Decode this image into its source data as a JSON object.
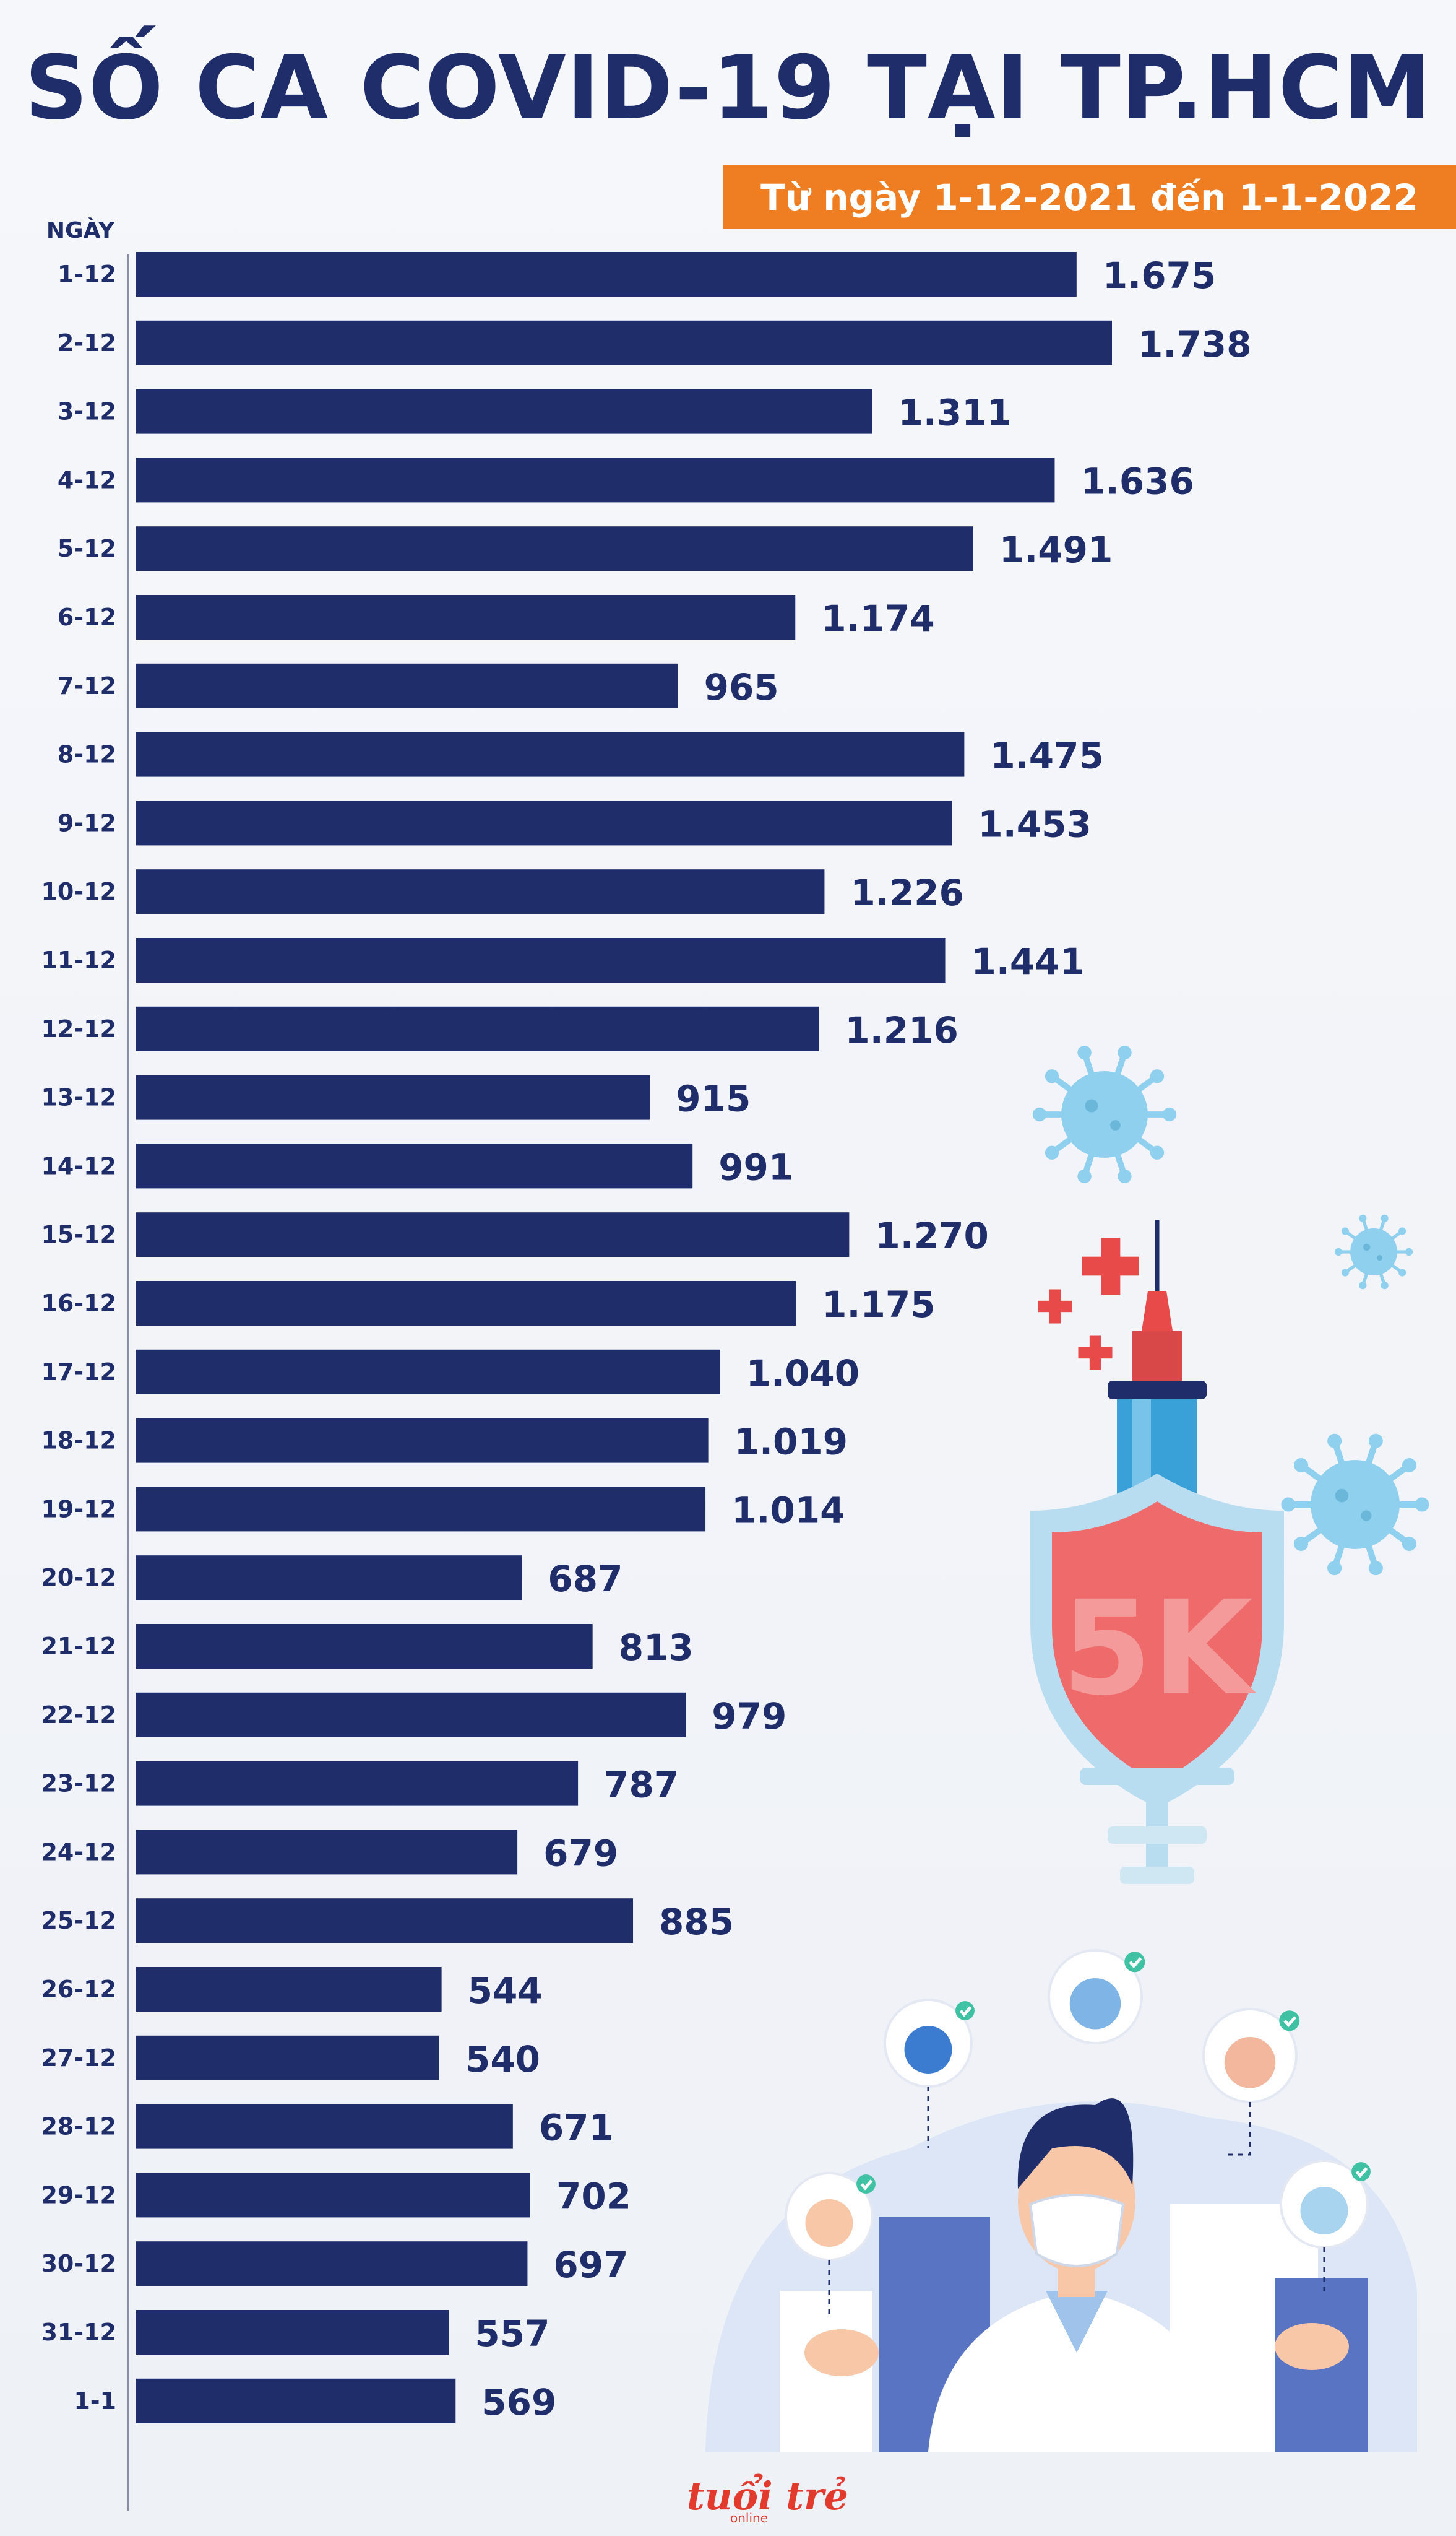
{
  "chart_data": {
    "type": "bar",
    "orientation": "horizontal",
    "title": "SỐ CA COVID-19 TẠI TP.HCM",
    "subtitle": "Từ ngày 1-12-2021 đến 1-1-2022",
    "ylabel": "NGÀY",
    "categories": [
      "1-12",
      "2-12",
      "3-12",
      "4-12",
      "5-12",
      "6-12",
      "7-12",
      "8-12",
      "9-12",
      "10-12",
      "11-12",
      "12-12",
      "13-12",
      "14-12",
      "15-12",
      "16-12",
      "17-12",
      "18-12",
      "19-12",
      "20-12",
      "21-12",
      "22-12",
      "23-12",
      "24-12",
      "25-12",
      "26-12",
      "27-12",
      "28-12",
      "29-12",
      "30-12",
      "31-12",
      "1-1"
    ],
    "values": [
      1675,
      1738,
      1311,
      1636,
      1491,
      1174,
      965,
      1475,
      1453,
      1226,
      1441,
      1216,
      915,
      991,
      1270,
      1175,
      1040,
      1019,
      1014,
      687,
      813,
      979,
      787,
      679,
      885,
      544,
      540,
      671,
      702,
      697,
      557,
      569
    ],
    "value_labels": [
      "1.675",
      "1.738",
      "1.311",
      "1.636",
      "1.491",
      "1.174",
      "965",
      "1.475",
      "1.453",
      "1.226",
      "1.441",
      "1.216",
      "915",
      "991",
      "1.270",
      "1.175",
      "1.040",
      "1.019",
      "1.014",
      "687",
      "813",
      "979",
      "787",
      "679",
      "885",
      "544",
      "540",
      "671",
      "702",
      "697",
      "557",
      "569"
    ],
    "xlim": [
      0,
      1738
    ],
    "bar_color": "#1f2d6a",
    "label_color": "#1f2d6a"
  },
  "illustration": {
    "shield_text": "5K",
    "shield_color": "#ef6b6b",
    "syringe_color": "#e84a4a",
    "virus_color": "#8fd0ee"
  },
  "footer": {
    "logo_text": "tuổi trẻ",
    "logo_sub": "online",
    "logo_color": "#e23b2e"
  },
  "colors": {
    "title": "#1f2d6a",
    "accent": "#ef7d22",
    "background": "#f4f6fa"
  }
}
